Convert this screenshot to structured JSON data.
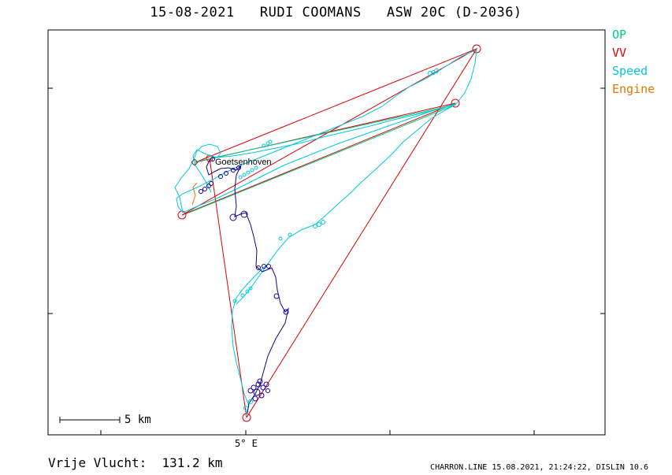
{
  "title": "15-08-2021   RUDI COOMANS   ASW 20C (D-2036)",
  "legend": [
    {
      "label": "OP",
      "color": "#00d080"
    },
    {
      "label": "VV",
      "color": "#dd0000"
    },
    {
      "label": "Speed",
      "color": "#00c8e0"
    },
    {
      "label": "Engine",
      "color": "#e07800"
    }
  ],
  "footer": {
    "distance": "Vrije Vlucht:  131.2 km",
    "info": "CHARRON.LINE 15.08.2021, 21:24:22, DISLIN 10.6"
  },
  "chart_data": {
    "type": "line",
    "x_tick_label": "5° E",
    "scale_bar_label": "5 km",
    "place_label": "Goetsenhoven",
    "colors": {
      "task": "#dd0000",
      "op": "#00d080",
      "speed": "#00c8e0",
      "engine": "#e07800",
      "vario": "#1a0090",
      "frame": "#000000"
    }
  }
}
